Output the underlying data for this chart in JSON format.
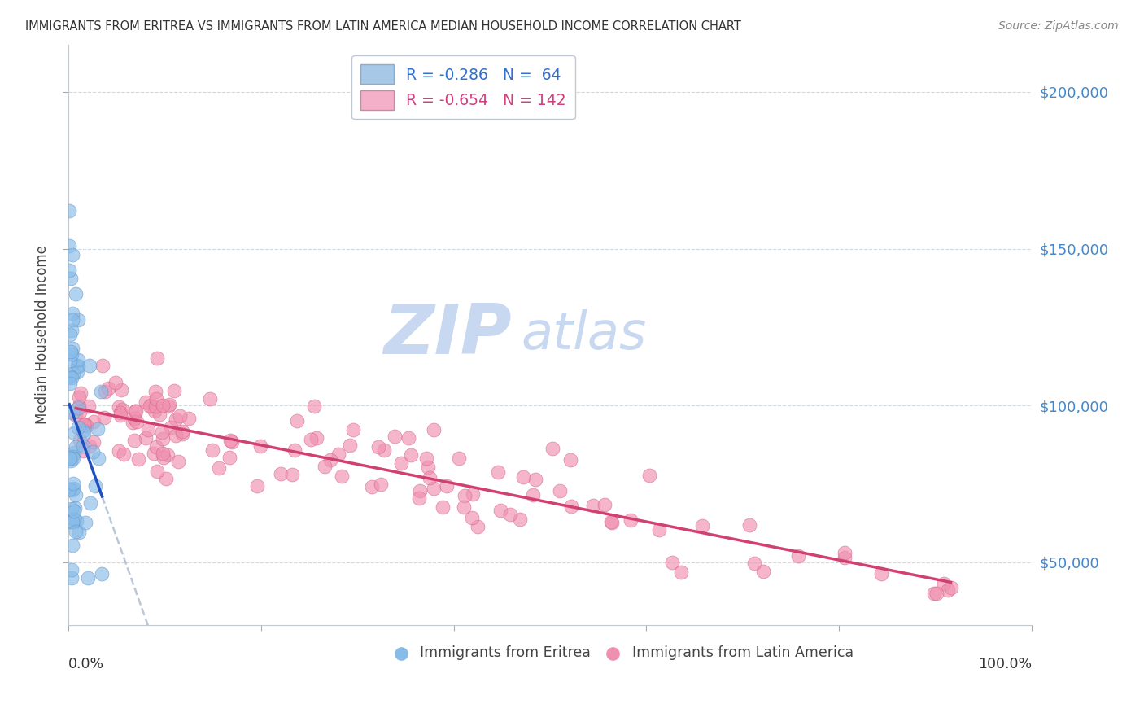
{
  "title": "IMMIGRANTS FROM ERITREA VS IMMIGRANTS FROM LATIN AMERICA MEDIAN HOUSEHOLD INCOME CORRELATION CHART",
  "source": "Source: ZipAtlas.com",
  "ylabel": "Median Household Income",
  "y_tick_values": [
    50000,
    100000,
    150000,
    200000
  ],
  "ylim": [
    30000,
    215000
  ],
  "xlim": [
    0,
    1.0
  ],
  "watermark_zip": "ZIP",
  "watermark_atlas": "atlas",
  "watermark_color": "#c8d8f0",
  "legend_labels": [
    "R = -0.286   N =  64",
    "R = -0.654   N = 142"
  ],
  "legend_patch_colors": [
    "#a8c8e8",
    "#f4b0c8"
  ],
  "legend_text_colors": [
    "#3070d0",
    "#d04080"
  ],
  "series_colors": [
    "#88bce8",
    "#f090b0"
  ],
  "series_edge_colors": [
    "#6090c8",
    "#d06080"
  ],
  "trend_colors": [
    "#2050c0",
    "#d04070"
  ],
  "bottom_labels": [
    "Immigrants from Eritrea",
    "Immigrants from Latin America"
  ],
  "bottom_label_colors": [
    "#3070d0",
    "#d04070"
  ]
}
